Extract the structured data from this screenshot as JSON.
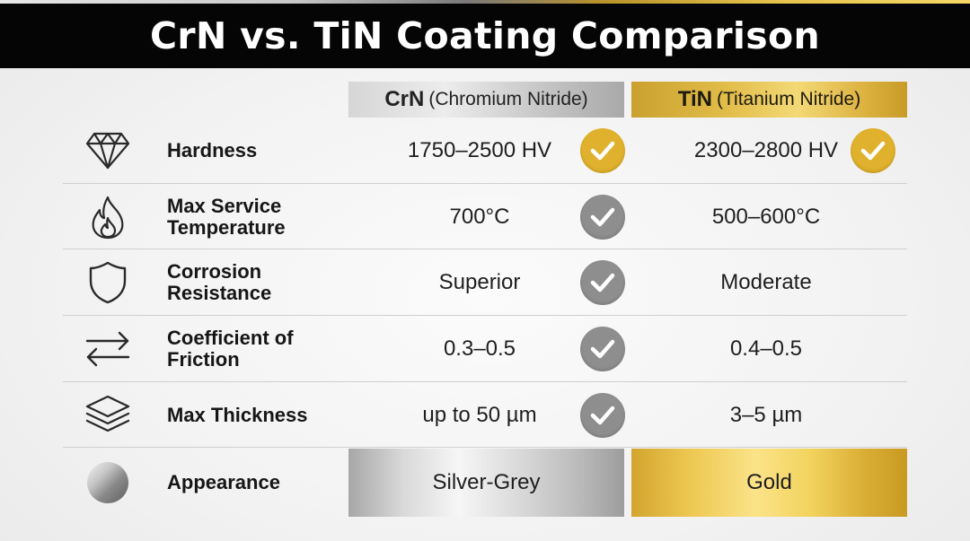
{
  "title": "CrN vs. TiN Coating Comparison",
  "columns": [
    {
      "abbr": "CrN",
      "full": "(Chromium Nitride)"
    },
    {
      "abbr": "TiN",
      "full": "(Titanium Nitride)"
    }
  ],
  "rows": [
    {
      "icon": "diamond-icon",
      "label": "Hardness",
      "crn": "1750–2500 HV",
      "tin": "2300–2800 HV",
      "crn_check": "gold",
      "tin_check": "gold"
    },
    {
      "icon": "flame-icon",
      "label": "Max Service Temperature",
      "crn": "700°C",
      "tin": "500–600°C",
      "crn_check": "grey",
      "tin_check": "none"
    },
    {
      "icon": "shield-icon",
      "label": "Corrosion Resistance",
      "crn": "Superior",
      "tin": "Moderate",
      "crn_check": "grey",
      "tin_check": "none"
    },
    {
      "icon": "swap-arrows-icon",
      "label": "Coefficient of Friction",
      "crn": "0.3–0.5",
      "tin": "0.4–0.5",
      "crn_check": "grey",
      "tin_check": "none"
    },
    {
      "icon": "layers-icon",
      "label": "Max Thickness",
      "crn": "up to 50 µm",
      "tin": "3–5 µm",
      "crn_check": "grey",
      "tin_check": "none"
    },
    {
      "icon": "metal-sphere-icon",
      "label": "Appearance",
      "crn": "Silver-Grey",
      "tin": "Gold",
      "crn_check": "none",
      "tin_check": "none"
    }
  ],
  "colors": {
    "gold_check": "#e0b12c",
    "grey_check": "#8e8e8e",
    "title_bar": "#050505"
  }
}
